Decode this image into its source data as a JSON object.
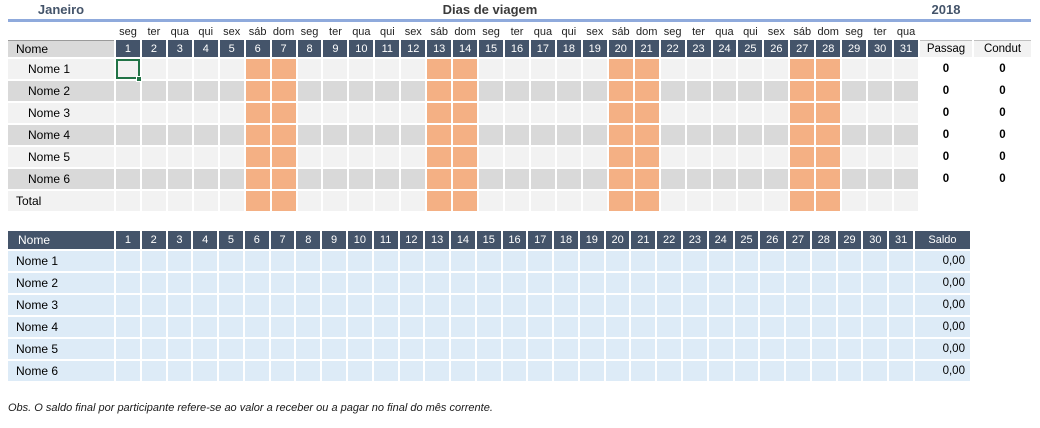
{
  "header": {
    "month": "Janeiro",
    "title": "Dias de viagem",
    "year": "2018"
  },
  "calendar": {
    "weekdays": [
      "seg",
      "ter",
      "qua",
      "qui",
      "sex",
      "sáb",
      "dom",
      "seg",
      "ter",
      "qua",
      "qui",
      "sex",
      "sáb",
      "dom",
      "seg",
      "ter",
      "qua",
      "qui",
      "sex",
      "sáb",
      "dom",
      "seg",
      "ter",
      "qua",
      "qui",
      "sex",
      "sáb",
      "dom",
      "seg",
      "ter",
      "qua"
    ],
    "days": [
      "1",
      "2",
      "3",
      "4",
      "5",
      "6",
      "7",
      "8",
      "9",
      "10",
      "11",
      "12",
      "13",
      "14",
      "15",
      "16",
      "17",
      "18",
      "19",
      "20",
      "21",
      "22",
      "23",
      "24",
      "25",
      "26",
      "27",
      "28",
      "29",
      "30",
      "31"
    ],
    "weekend_days": [
      6,
      7,
      13,
      14,
      20,
      21,
      27,
      28
    ]
  },
  "table1": {
    "name_header": "Nome",
    "passag_header": "Passag",
    "condut_header": "Condut",
    "rows": [
      {
        "name": "Nome 1",
        "passag": "0",
        "condut": "0"
      },
      {
        "name": "Nome 2",
        "passag": "0",
        "condut": "0"
      },
      {
        "name": "Nome 3",
        "passag": "0",
        "condut": "0"
      },
      {
        "name": "Nome 4",
        "passag": "0",
        "condut": "0"
      },
      {
        "name": "Nome 5",
        "passag": "0",
        "condut": "0"
      },
      {
        "name": "Nome 6",
        "passag": "0",
        "condut": "0"
      }
    ],
    "total_label": "Total"
  },
  "table2": {
    "name_header": "Nome",
    "saldo_header": "Saldo",
    "rows": [
      {
        "name": "Nome 1",
        "saldo": "0,00"
      },
      {
        "name": "Nome 2",
        "saldo": "0,00"
      },
      {
        "name": "Nome 3",
        "saldo": "0,00"
      },
      {
        "name": "Nome 4",
        "saldo": "0,00"
      },
      {
        "name": "Nome 5",
        "saldo": "0,00"
      },
      {
        "name": "Nome 6",
        "saldo": "0,00"
      }
    ]
  },
  "selection": {
    "row": "Nome 1",
    "day": 1
  },
  "note": "Obs. O saldo final por participante refere-se ao valor a receber ou a pagar no final do mês corrente.",
  "colors": {
    "header_bg": "#44546A",
    "weekend_fill": "#F4B084",
    "stripe_light": "#F2F2F2",
    "stripe_dark": "#D9D9D9",
    "balance_row": "#DDEBF7",
    "accent_line": "#8FAADC",
    "selection_border": "#217346"
  }
}
